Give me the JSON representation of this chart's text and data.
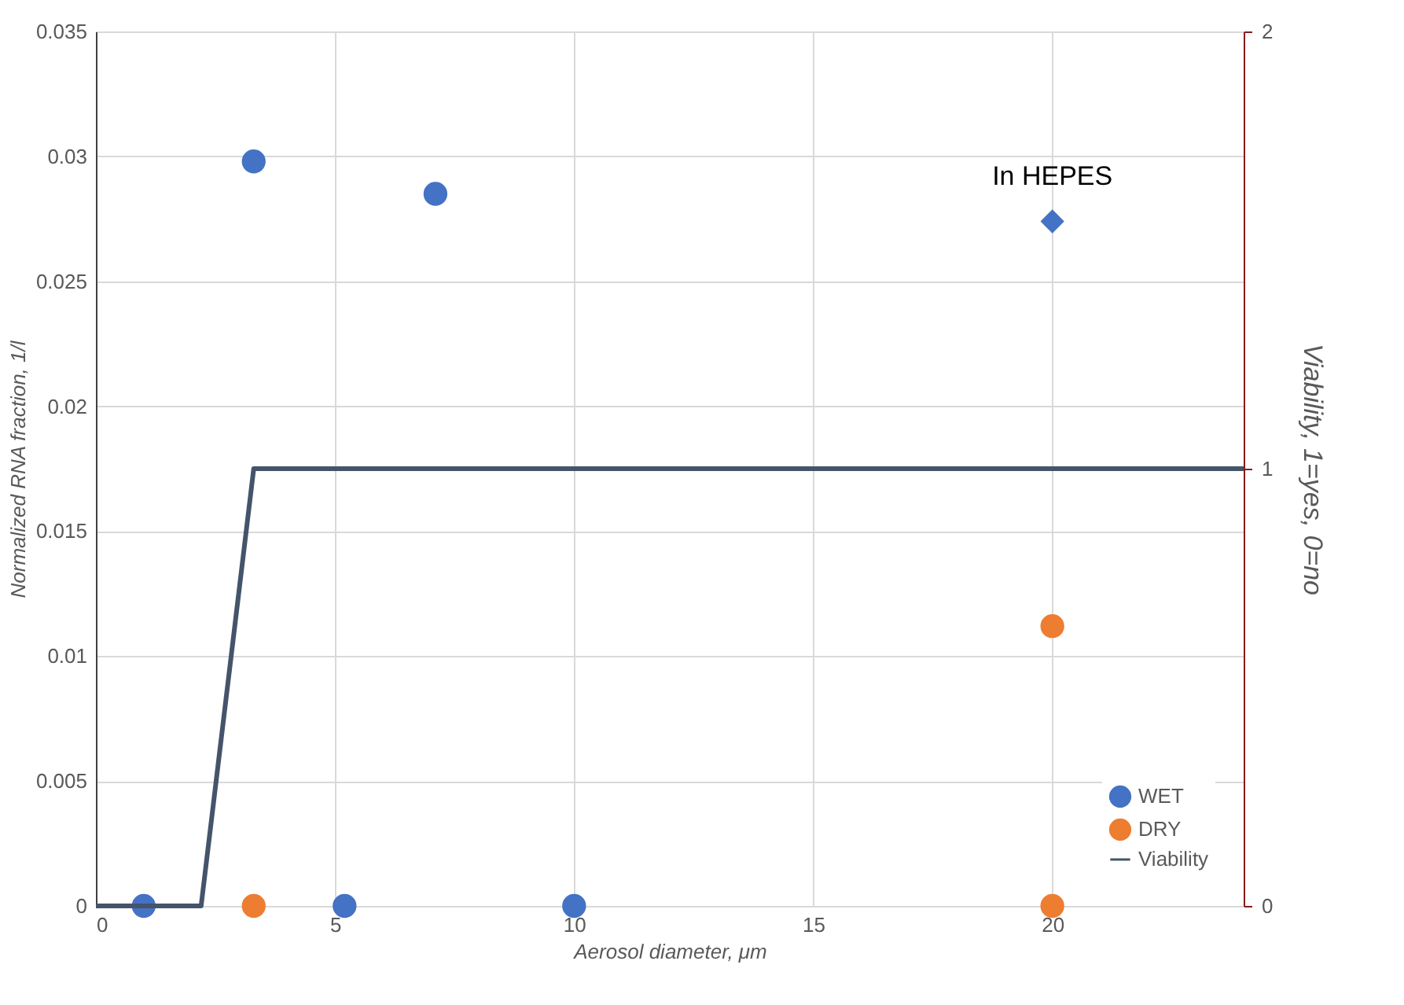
{
  "chart_data": {
    "type": "scatter",
    "xlabel": "Aerosol diameter, μm",
    "ylabel": "Normalized RNA fraction, 1/l",
    "y2label": "Viability, 1=yes, 0=no",
    "xlim": [
      0,
      24
    ],
    "xticks": [
      0,
      5,
      10,
      15,
      20
    ],
    "ylim": [
      0,
      0.035
    ],
    "yticks": [
      0,
      0.005,
      0.01,
      0.015,
      0.02,
      0.025,
      0.03,
      0.035
    ],
    "y2lim": [
      0,
      2
    ],
    "y2ticks": [
      0,
      1,
      2
    ],
    "grid": true,
    "legend": "bottom right",
    "annotations": [
      {
        "text": "In HEPES",
        "x": 20,
        "y": 0.0274
      }
    ],
    "series": [
      {
        "name": "WET",
        "type": "scatter",
        "marker": "circle",
        "color": "#4472c4",
        "x": [
          1,
          3.3,
          5.2,
          7.1,
          10
        ],
        "values": [
          0,
          0.0298,
          0,
          0.0285,
          0
        ]
      },
      {
        "marker": "diamond",
        "color": "#4472c4",
        "x": [
          20
        ],
        "values": [
          0.0274
        ]
      },
      {
        "name": "DRY",
        "type": "scatter",
        "marker": "circle",
        "color": "#ed7d31",
        "x": [
          3.3,
          20,
          20
        ],
        "values": [
          0,
          0.0112,
          0
        ]
      },
      {
        "name": "Viability",
        "type": "line",
        "axis": "y2",
        "line_style": "solid",
        "color": "#44546a",
        "x": [
          0,
          2.2,
          3.3,
          24
        ],
        "values": [
          0,
          0,
          1,
          1
        ]
      }
    ]
  }
}
